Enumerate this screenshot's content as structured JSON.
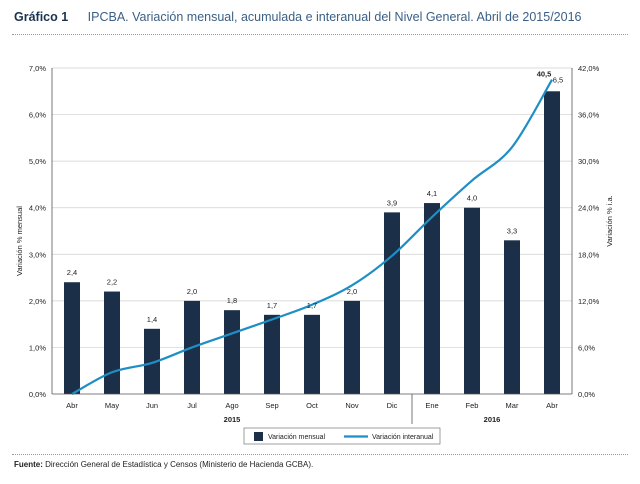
{
  "header": {
    "figure_number": "Gráfico 1",
    "title": "IPCBA. Variación mensual, acumulada e interanual del Nivel General. Abril de 2015/2016"
  },
  "source": {
    "label": "Fuente:",
    "text": "Dirección General de Estadística y Censos (Ministerio de Hacienda GCBA)."
  },
  "colors": {
    "bars": "#1b2f48",
    "line": "#1e8ec6",
    "title_number": "#1a3350",
    "title_text": "#3b5f86"
  },
  "chart_data": {
    "type": "bar",
    "categories": [
      "Abr",
      "May",
      "Jun",
      "Jul",
      "Ago",
      "Sep",
      "Oct",
      "Nov",
      "Dic",
      "Ene",
      "Feb",
      "Mar",
      "Abr"
    ],
    "year_groups": [
      {
        "label": "2015",
        "from": 0,
        "to": 8
      },
      {
        "label": "2016",
        "from": 9,
        "to": 12
      }
    ],
    "series": [
      {
        "name": "Variación mensual",
        "type": "bar",
        "axis": "left",
        "values": [
          2.4,
          2.2,
          1.4,
          2.0,
          1.8,
          1.7,
          1.7,
          2.0,
          3.9,
          4.1,
          4.0,
          3.3,
          6.5
        ],
        "labels": [
          "2,4",
          "2,2",
          "1,4",
          "2,0",
          "1,8",
          "1,7",
          "1,7",
          "2,0",
          "3,9",
          "4,1",
          "4,0",
          "3,3",
          "6,5"
        ]
      },
      {
        "name": "Variación interanual",
        "type": "line",
        "axis": "right",
        "values": [
          0.0,
          2.8,
          4.0,
          6.0,
          7.8,
          9.6,
          11.5,
          14.0,
          17.8,
          22.8,
          27.5,
          31.8,
          40.5
        ],
        "end_label": "40,5"
      }
    ],
    "ylabel": "Variación % mensual",
    "y2label": "Variación % i.a.",
    "ylim": [
      0,
      7
    ],
    "y2lim": [
      0,
      42
    ],
    "y_ticks": [
      "0,0%",
      "1,0%",
      "2,0%",
      "3,0%",
      "4,0%",
      "5,0%",
      "6,0%",
      "7,0%"
    ],
    "y2_ticks": [
      "0,0%",
      "6,0%",
      "12,0%",
      "18,0%",
      "24,0%",
      "30,0%",
      "36,0%",
      "42,0%"
    ],
    "grid": true,
    "legend_position": "bottom-center"
  }
}
